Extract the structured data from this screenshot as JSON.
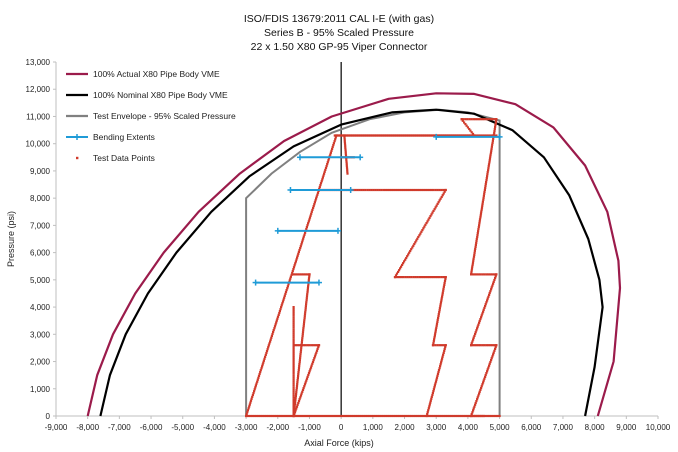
{
  "chart_data": {
    "type": "line",
    "title": "ISO/FDIS 13679:2011 CAL I-E (with gas)",
    "subtitle_1": "Series B - 95% Scaled Pressure",
    "subtitle_2": "22 x 1.50 X80 GP-95 Viper Connector",
    "xlabel": "Axial Force (kips)",
    "ylabel": "Pressure (psi)",
    "xlim": [
      -9000,
      10000
    ],
    "ylim": [
      0,
      13000
    ],
    "x_ticks": [
      -9000,
      -8000,
      -7000,
      -6000,
      -5000,
      -4000,
      -3000,
      -2000,
      -1000,
      0,
      1000,
      2000,
      3000,
      4000,
      5000,
      6000,
      7000,
      8000,
      9000,
      10000
    ],
    "x_tick_labels": [
      "-9,000",
      "-8,000",
      "-7,000",
      "-6,000",
      "-5,000",
      "-4,000",
      "-3,000",
      "-2,000",
      "-1,000",
      "0",
      "1,000",
      "2,000",
      "3,000",
      "4,000",
      "5,000",
      "6,000",
      "7,000",
      "8,000",
      "9,000",
      "10,000"
    ],
    "y_ticks": [
      0,
      1000,
      2000,
      3000,
      4000,
      5000,
      6000,
      7000,
      8000,
      9000,
      10000,
      11000,
      12000,
      13000
    ],
    "y_tick_labels": [
      "0",
      "1,000",
      "2,000",
      "3,000",
      "4,000",
      "5,000",
      "6,000",
      "7,000",
      "8,000",
      "9,000",
      "10,000",
      "11,000",
      "12,000",
      "13,000"
    ],
    "grid": false,
    "legend_position": "top-left",
    "series": [
      {
        "name": "100% Actual X80 Pipe Body VME",
        "color": "#9b1b4b",
        "style": "line",
        "points": [
          [
            -8000,
            0
          ],
          [
            -7700,
            1500
          ],
          [
            -7200,
            3000
          ],
          [
            -6500,
            4500
          ],
          [
            -5600,
            6000
          ],
          [
            -4500,
            7500
          ],
          [
            -3200,
            8900
          ],
          [
            -1800,
            10100
          ],
          [
            -300,
            11000
          ],
          [
            1500,
            11650
          ],
          [
            3000,
            11850
          ],
          [
            4200,
            11830
          ],
          [
            5500,
            11450
          ],
          [
            6700,
            10600
          ],
          [
            7700,
            9200
          ],
          [
            8400,
            7500
          ],
          [
            8750,
            5700
          ],
          [
            8800,
            4700
          ],
          [
            8600,
            2000
          ],
          [
            8100,
            0
          ]
        ]
      },
      {
        "name": "100% Nominal X80 Pipe Body VME",
        "color": "#000000",
        "style": "line",
        "points": [
          [
            -7600,
            0
          ],
          [
            -7300,
            1500
          ],
          [
            -6800,
            3000
          ],
          [
            -6100,
            4500
          ],
          [
            -5200,
            6000
          ],
          [
            -4100,
            7500
          ],
          [
            -2900,
            8800
          ],
          [
            -1500,
            9900
          ],
          [
            0,
            10700
          ],
          [
            1600,
            11150
          ],
          [
            3000,
            11250
          ],
          [
            4200,
            11100
          ],
          [
            5400,
            10500
          ],
          [
            6400,
            9500
          ],
          [
            7200,
            8100
          ],
          [
            7800,
            6500
          ],
          [
            8150,
            5000
          ],
          [
            8250,
            4000
          ],
          [
            8000,
            1800
          ],
          [
            7700,
            0
          ]
        ]
      },
      {
        "name": "Test Envelope - 95% Scaled Pressure",
        "color": "#808080",
        "style": "line",
        "points": [
          [
            -3000,
            0
          ],
          [
            -3000,
            8000
          ],
          [
            -2200,
            8900
          ],
          [
            -1300,
            9700
          ],
          [
            -300,
            10400
          ],
          [
            900,
            10900
          ],
          [
            2000,
            11150
          ],
          [
            3100,
            11250
          ],
          [
            4000,
            11150
          ],
          [
            5000,
            10850
          ],
          [
            5000,
            0
          ],
          [
            -3000,
            0
          ]
        ]
      },
      {
        "name": "Bending Extents",
        "color": "#1f9bd7",
        "style": "segments",
        "segments": [
          [
            [
              -2700,
              4900
            ],
            [
              -700,
              4900
            ]
          ],
          [
            [
              -2000,
              6800
            ],
            [
              -100,
              6800
            ]
          ],
          [
            [
              -1600,
              8300
            ],
            [
              300,
              8300
            ]
          ],
          [
            [
              -1300,
              9500
            ],
            [
              600,
              9500
            ]
          ],
          [
            [
              3000,
              10250
            ],
            [
              5000,
              10250
            ]
          ]
        ]
      },
      {
        "name": "Test Data Points",
        "color": "#d03a2b",
        "style": "dots",
        "paths": [
          [
            [
              -3000,
              0
            ],
            [
              -150,
              10300
            ],
            [
              4900,
              10300
            ]
          ],
          [
            [
              -1500,
              0
            ],
            [
              -1500,
              4000
            ]
          ],
          [
            [
              -1500,
              5200
            ],
            [
              -1000,
              5200
            ],
            [
              -1500,
              0
            ]
          ],
          [
            [
              -1500,
              2600
            ],
            [
              -700,
              2600
            ],
            [
              -1500,
              0
            ]
          ],
          [
            [
              -700,
              8300
            ],
            [
              3300,
              8300
            ],
            [
              1700,
              5100
            ],
            [
              3300,
              5100
            ],
            [
              2900,
              2600
            ],
            [
              3300,
              2600
            ],
            [
              2700,
              0
            ]
          ],
          [
            [
              -200,
              10300
            ],
            [
              4200,
              10300
            ],
            [
              3800,
              10900
            ],
            [
              4900,
              10900
            ],
            [
              4100,
              5200
            ],
            [
              4900,
              5200
            ],
            [
              4100,
              2600
            ],
            [
              4900,
              2600
            ],
            [
              4100,
              0
            ],
            [
              5000,
              0
            ]
          ],
          [
            [
              -3000,
              0
            ],
            [
              4500,
              0
            ]
          ],
          [
            [
              0,
              9500
            ],
            [
              400,
              9500
            ]
          ],
          [
            [
              100,
              10300
            ],
            [
              200,
              8900
            ]
          ]
        ]
      }
    ]
  }
}
